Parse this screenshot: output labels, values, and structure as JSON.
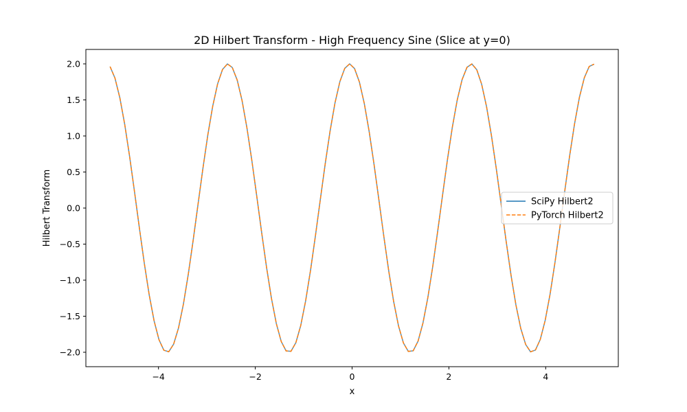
{
  "chart_data": {
    "type": "line",
    "title": "2D Hilbert Transform - High Frequency Sine (Slice at y=0)",
    "xlabel": "x",
    "ylabel": "Hilbert Transform",
    "xlim": [
      -5.5,
      5.5
    ],
    "ylim": [
      -2.2,
      2.2
    ],
    "x_ticks": [
      -4,
      -2,
      0,
      2,
      4
    ],
    "x_tick_labels": [
      "−4",
      "−2",
      "0",
      "2",
      "4"
    ],
    "y_ticks": [
      -2.0,
      -1.5,
      -1.0,
      -0.5,
      0.0,
      0.5,
      1.0,
      1.5,
      2.0
    ],
    "y_tick_labels": [
      "−2.0",
      "−1.5",
      "−1.0",
      "−0.5",
      "0.0",
      "0.5",
      "1.0",
      "1.5",
      "2.0"
    ],
    "grid": false,
    "legend_position": "center-right",
    "x_range": [
      -5,
      5
    ],
    "num_points": 100,
    "series": [
      {
        "name": "SciPy Hilbert2",
        "color": "#1f77b4",
        "style": "solid",
        "values": []
      },
      {
        "name": "PyTorch Hilbert2",
        "color": "#ff7f0e",
        "style": "dashed",
        "values": []
      }
    ]
  }
}
